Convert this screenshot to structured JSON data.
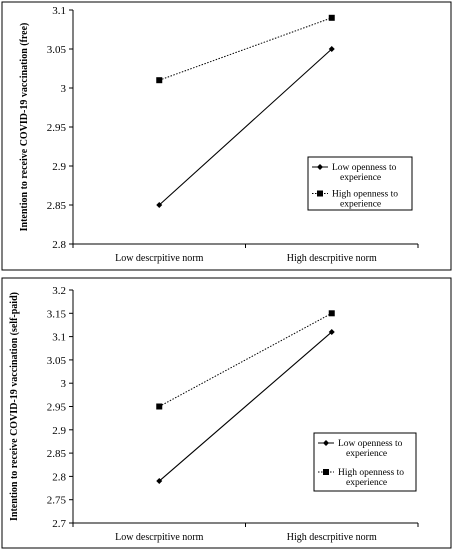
{
  "chart_data": [
    {
      "type": "line",
      "title": "",
      "xlabel": "",
      "ylabel": "Intention to receive COVID-19 vaccination (free)",
      "categories": [
        "Low descrpitive norm",
        "High descrpitive norm"
      ],
      "ylim": [
        2.8,
        3.1
      ],
      "yticks": [
        "2.8",
        "2.85",
        "2.9",
        "2.95",
        "3",
        "3.05",
        "3.1"
      ],
      "series": [
        {
          "name": "Low openness to experience",
          "values": [
            2.85,
            3.05
          ],
          "line": "solid",
          "marker": "diamond"
        },
        {
          "name": "High openness to experience",
          "values": [
            3.01,
            3.09
          ],
          "line": "dotted",
          "marker": "square"
        }
      ],
      "legend": "right"
    },
    {
      "type": "line",
      "title": "",
      "xlabel": "",
      "ylabel": "Intention to receive COVID-19 vaccination (self-paid)",
      "categories": [
        "Low descrpitive norm",
        "High descrpitive norm"
      ],
      "ylim": [
        2.7,
        3.2
      ],
      "yticks": [
        "2.7",
        "2.75",
        "2.8",
        "2.85",
        "2.9",
        "2.95",
        "3",
        "3.05",
        "3.1",
        "3.15",
        "3.2"
      ],
      "series": [
        {
          "name": "Low openness to experience",
          "values": [
            2.79,
            3.11
          ],
          "line": "solid",
          "marker": "diamond"
        },
        {
          "name": "High openness to experience",
          "values": [
            2.95,
            3.15
          ],
          "line": "dotted",
          "marker": "square"
        }
      ],
      "legend": "right"
    }
  ]
}
